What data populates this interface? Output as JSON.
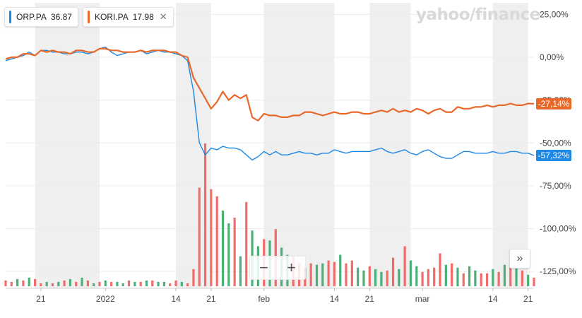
{
  "legend": [
    {
      "symbol": "ORP.PA",
      "price": "36.87",
      "color": "#1e88e5"
    },
    {
      "symbol": "KORI.PA",
      "price": "17.98",
      "color": "#e8682a",
      "close": "✕"
    }
  ],
  "logo_text": "yahoo/finance",
  "controls": {
    "zoom_out": "−",
    "zoom_in": "+",
    "next": "»"
  },
  "colors": {
    "up": "#4caf78",
    "down": "#f26b6b",
    "band": "#efefef",
    "grid": "#ececec"
  },
  "chart_data": {
    "type": "line",
    "y_ticks": [
      "25,00%",
      "0,00%",
      "-25,00%",
      "-50,00%",
      "-75,00%",
      "-100,00%",
      "-125,00%"
    ],
    "y_tick_values": [
      25,
      0,
      -25,
      -50,
      -75,
      -100,
      -125
    ],
    "ylim": [
      -135,
      30
    ],
    "x_ticks": [
      "21",
      "2022",
      "14",
      "21",
      "feb",
      "14",
      "21",
      "mar",
      "14",
      "21"
    ],
    "x_tick_index": [
      6,
      17,
      29,
      35,
      44,
      56,
      62,
      71,
      83,
      89
    ],
    "shaded_bands": [
      [
        5,
        16
      ],
      [
        29,
        35
      ],
      [
        44,
        56
      ],
      [
        62,
        69
      ],
      [
        83,
        89
      ]
    ],
    "n_points": 91,
    "series": [
      {
        "name": "ORP.PA",
        "color": "#1e88e5",
        "last_label": "-57,32%",
        "values": [
          -2,
          -1,
          0,
          1,
          3,
          1,
          4,
          4,
          3,
          3,
          2,
          2,
          3,
          3,
          2,
          3,
          5,
          6,
          3,
          1,
          2,
          3,
          3,
          4,
          2,
          3,
          4,
          3,
          3,
          2,
          1,
          -2,
          -20,
          -50,
          -57,
          -53,
          -54,
          -52,
          -53,
          -53,
          -54,
          -57,
          -60,
          -58,
          -55,
          -57,
          -55,
          -57,
          -57,
          -56,
          -55,
          -56,
          -56,
          -57,
          -56,
          -56,
          -54,
          -55,
          -56,
          -55,
          -55,
          -55,
          -55,
          -54,
          -53,
          -55,
          -56,
          -55,
          -54,
          -56,
          -57,
          -55,
          -54,
          -56,
          -58,
          -59,
          -59,
          -57,
          -55,
          -55,
          -56,
          -56,
          -56,
          -55,
          -56,
          -56,
          -55,
          -55,
          -56,
          -56,
          -57.32
        ]
      },
      {
        "name": "KORI.PA",
        "color": "#e8682a",
        "last_label": "-27,14%",
        "values": [
          -1,
          0,
          0,
          2,
          2,
          1,
          4,
          3,
          4,
          3,
          3,
          2,
          4,
          4,
          3,
          3,
          5,
          5,
          4,
          4,
          3,
          3,
          3,
          4,
          3,
          4,
          4,
          4,
          3,
          3,
          1,
          0,
          -12,
          -18,
          -24,
          -30,
          -26,
          -20,
          -25,
          -22,
          -24,
          -22,
          -35,
          -37,
          -33,
          -34,
          -34,
          -35,
          -35,
          -34,
          -34,
          -32,
          -32,
          -33,
          -34,
          -33,
          -32,
          -33,
          -33,
          -32,
          -32,
          -33,
          -33,
          -32,
          -31,
          -32,
          -30,
          -32,
          -31,
          -32,
          -30,
          -31,
          -33,
          -31,
          -30,
          -32,
          -32,
          -29,
          -30,
          -30,
          -29,
          -29,
          -28,
          -29,
          -28,
          -28,
          -27,
          -28,
          -28,
          -27,
          -27.14
        ]
      }
    ],
    "volume": {
      "max": 100,
      "values": [
        4,
        3,
        5,
        4,
        6,
        5,
        2,
        3,
        2,
        3,
        4,
        5,
        3,
        6,
        4,
        2,
        3,
        4,
        3,
        3,
        2,
        4,
        3,
        3,
        4,
        4,
        3,
        3,
        2,
        4,
        3,
        2,
        12,
        69,
        100,
        68,
        63,
        53,
        44,
        48,
        21,
        59,
        39,
        28,
        33,
        32,
        40,
        27,
        22,
        21,
        16,
        13,
        16,
        15,
        16,
        18,
        17,
        22,
        16,
        18,
        13,
        11,
        14,
        12,
        10,
        11,
        20,
        12,
        28,
        18,
        14,
        10,
        12,
        13,
        23,
        15,
        16,
        13,
        9,
        14,
        11,
        9,
        9,
        12,
        10,
        15,
        17,
        15,
        11,
        8,
        6
      ],
      "up": [
        0,
        0,
        1,
        0,
        1,
        0,
        0,
        1,
        0,
        1,
        0,
        1,
        0,
        1,
        0,
        1,
        0,
        1,
        0,
        1,
        1,
        0,
        1,
        0,
        1,
        0,
        1,
        1,
        0,
        0,
        1,
        0,
        0,
        0,
        0,
        0,
        0,
        1,
        1,
        0,
        1,
        0,
        1,
        1,
        0,
        1,
        0,
        1,
        1,
        0,
        0,
        0,
        0,
        1,
        1,
        0,
        0,
        1,
        0,
        0,
        1,
        1,
        0,
        1,
        1,
        0,
        0,
        1,
        0,
        1,
        1,
        0,
        0,
        0,
        0,
        1,
        0,
        1,
        0,
        1,
        1,
        0,
        0,
        1,
        0,
        1,
        0,
        1,
        0,
        1,
        0
      ]
    }
  }
}
